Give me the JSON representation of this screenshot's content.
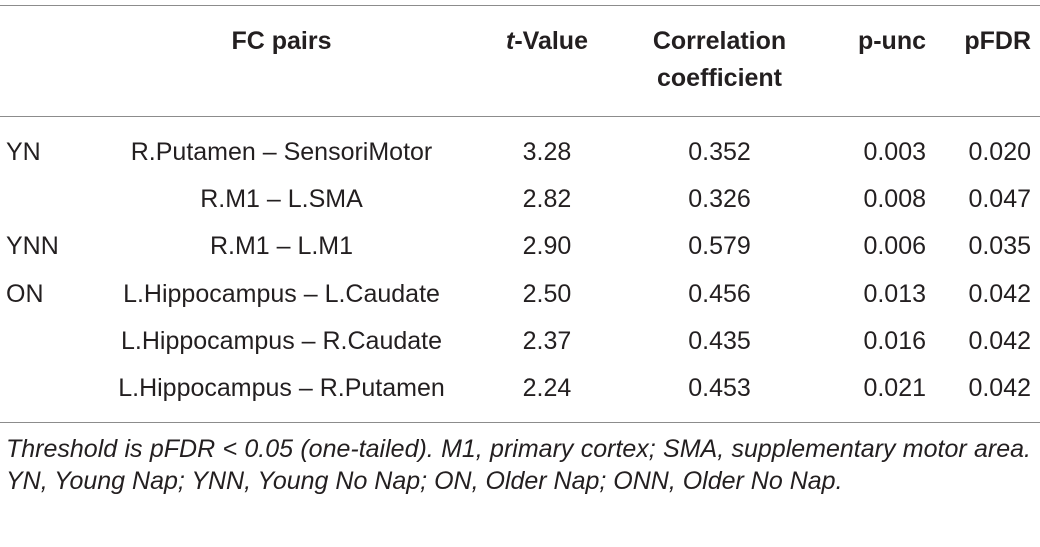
{
  "table": {
    "headers": {
      "fc_pairs": "FC pairs",
      "t_value_prefix": "t",
      "t_value_suffix": "-Value",
      "correlation_line1": "Correlation",
      "correlation_line2": "coefficient",
      "p_unc": "p-unc",
      "pfdr": "pFDR"
    },
    "rows": [
      {
        "group": "YN",
        "pair": "R.Putamen – SensoriMotor",
        "t": "3.28",
        "r": "0.352",
        "punc": "0.003",
        "pfdr": "0.020"
      },
      {
        "group": "",
        "pair": "R.M1 – L.SMA",
        "t": "2.82",
        "r": "0.326",
        "punc": "0.008",
        "pfdr": "0.047"
      },
      {
        "group": "YNN",
        "pair": "R.M1 – L.M1",
        "t": "2.90",
        "r": "0.579",
        "punc": "0.006",
        "pfdr": "0.035"
      },
      {
        "group": "ON",
        "pair": "L.Hippocampus – L.Caudate",
        "t": "2.50",
        "r": "0.456",
        "punc": "0.013",
        "pfdr": "0.042"
      },
      {
        "group": "",
        "pair": "L.Hippocampus – R.Caudate",
        "t": "2.37",
        "r": "0.435",
        "punc": "0.016",
        "pfdr": "0.042"
      },
      {
        "group": "",
        "pair": "L.Hippocampus – R.Putamen",
        "t": "2.24",
        "r": "0.453",
        "punc": "0.021",
        "pfdr": "0.042"
      }
    ],
    "footnote": "Threshold is pFDR < 0.05 (one-tailed). M1, primary cortex; SMA, supplementary motor area. YN, Young Nap; YNN, Young No Nap; ON, Older Nap; ONN, Older No Nap."
  }
}
